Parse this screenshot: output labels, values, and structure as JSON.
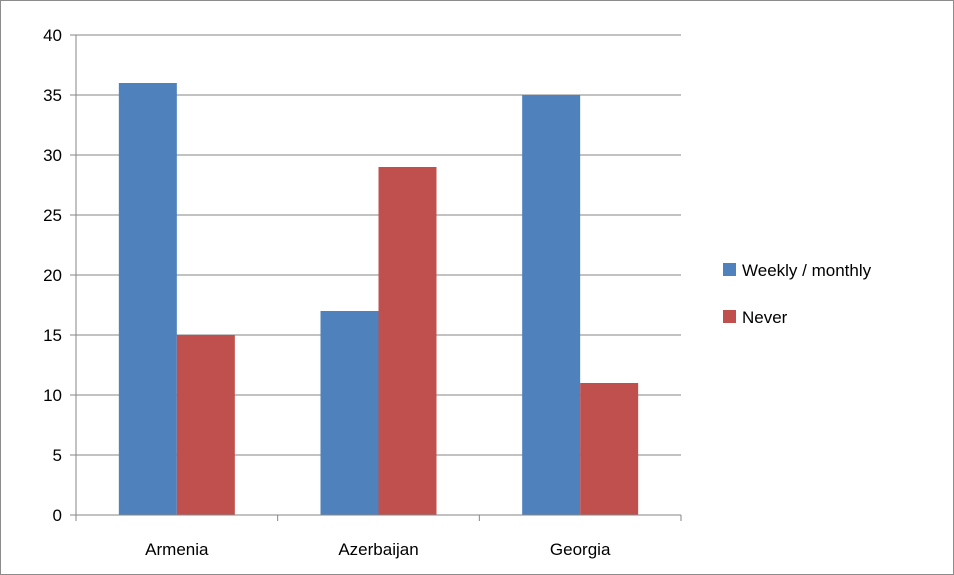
{
  "chart_data": {
    "type": "bar",
    "categories": [
      "Armenia",
      "Azerbaijan",
      "Georgia"
    ],
    "series": [
      {
        "name": "Weekly / monthly",
        "values": [
          36,
          17,
          35
        ],
        "color": "#4f81bd"
      },
      {
        "name": "Never",
        "values": [
          15,
          29,
          11
        ],
        "color": "#c0504d"
      }
    ],
    "title": "",
    "xlabel": "",
    "ylabel": "",
    "ylim": [
      0,
      40
    ],
    "yticks": [
      0,
      5,
      10,
      15,
      20,
      25,
      30,
      35,
      40
    ],
    "grid": true,
    "legend_position": "right"
  }
}
